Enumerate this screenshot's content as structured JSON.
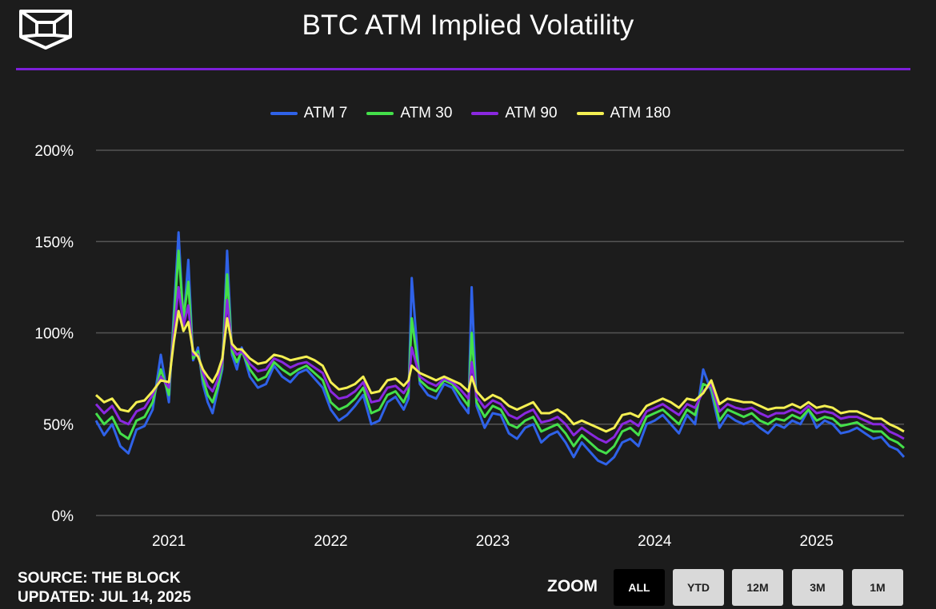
{
  "header": {
    "title": "BTC ATM Implied Volatility",
    "logo_icon": "the-block-cube-logo",
    "accent_color": "#7d1fd9"
  },
  "footer": {
    "source": "SOURCE: THE BLOCK",
    "updated": "UPDATED: JUL 14, 2025"
  },
  "zoom": {
    "label": "ZOOM",
    "buttons": [
      {
        "label": "ALL",
        "active": true
      },
      {
        "label": "YTD",
        "active": false
      },
      {
        "label": "12M",
        "active": false
      },
      {
        "label": "3M",
        "active": false
      },
      {
        "label": "1M",
        "active": false
      }
    ]
  },
  "chart_data": {
    "type": "line",
    "title": "BTC ATM Implied Volatility",
    "xlabel": "",
    "ylabel": "",
    "x_tick_labels": [
      "2021",
      "2022",
      "2023",
      "2024",
      "2025"
    ],
    "y_tick_labels": [
      "0%",
      "50%",
      "100%",
      "150%",
      "200%"
    ],
    "ylim": [
      0,
      200
    ],
    "xlim": [
      2020.55,
      2025.54
    ],
    "grid": true,
    "legend_position": "top-center",
    "x": [
      2020.55,
      2020.6,
      2020.65,
      2020.7,
      2020.75,
      2020.8,
      2020.85,
      2020.9,
      2020.95,
      2021.0,
      2021.03,
      2021.06,
      2021.09,
      2021.12,
      2021.15,
      2021.18,
      2021.21,
      2021.24,
      2021.27,
      2021.3,
      2021.33,
      2021.36,
      2021.39,
      2021.42,
      2021.45,
      2021.5,
      2021.55,
      2021.6,
      2021.65,
      2021.7,
      2021.75,
      2021.8,
      2021.85,
      2021.9,
      2021.95,
      2022.0,
      2022.05,
      2022.1,
      2022.15,
      2022.2,
      2022.25,
      2022.3,
      2022.35,
      2022.4,
      2022.45,
      2022.48,
      2022.5,
      2022.55,
      2022.6,
      2022.65,
      2022.7,
      2022.75,
      2022.8,
      2022.85,
      2022.87,
      2022.9,
      2022.95,
      2023.0,
      2023.05,
      2023.1,
      2023.15,
      2023.2,
      2023.25,
      2023.3,
      2023.35,
      2023.4,
      2023.45,
      2023.5,
      2023.55,
      2023.6,
      2023.65,
      2023.7,
      2023.75,
      2023.8,
      2023.85,
      2023.9,
      2023.95,
      2024.0,
      2024.05,
      2024.1,
      2024.15,
      2024.2,
      2024.25,
      2024.3,
      2024.35,
      2024.4,
      2024.45,
      2024.5,
      2024.55,
      2024.6,
      2024.65,
      2024.7,
      2024.75,
      2024.8,
      2024.85,
      2024.9,
      2024.95,
      2025.0,
      2025.05,
      2025.1,
      2025.15,
      2025.2,
      2025.25,
      2025.3,
      2025.35,
      2025.4,
      2025.45,
      2025.5,
      2025.54
    ],
    "series": [
      {
        "name": "ATM 7",
        "color": "#2f62e8",
        "values": [
          52,
          44,
          50,
          38,
          34,
          47,
          49,
          58,
          88,
          62,
          110,
          155,
          105,
          140,
          85,
          92,
          72,
          62,
          56,
          68,
          80,
          145,
          88,
          80,
          92,
          76,
          70,
          72,
          82,
          76,
          73,
          78,
          80,
          75,
          70,
          58,
          52,
          55,
          60,
          66,
          50,
          52,
          62,
          65,
          58,
          64,
          130,
          72,
          66,
          64,
          72,
          70,
          62,
          56,
          125,
          60,
          48,
          56,
          55,
          45,
          42,
          48,
          50,
          40,
          44,
          46,
          40,
          32,
          40,
          35,
          30,
          28,
          32,
          40,
          42,
          38,
          50,
          52,
          55,
          50,
          45,
          55,
          50,
          80,
          68,
          48,
          55,
          52,
          50,
          52,
          48,
          45,
          50,
          48,
          52,
          50,
          58,
          48,
          52,
          50,
          45,
          46,
          48,
          45,
          42,
          43,
          38,
          36,
          32
        ]
      },
      {
        "name": "ATM 30",
        "color": "#44e04a",
        "values": [
          56,
          50,
          54,
          45,
          42,
          52,
          54,
          62,
          80,
          66,
          105,
          145,
          108,
          128,
          86,
          90,
          75,
          66,
          62,
          70,
          82,
          132,
          90,
          84,
          90,
          80,
          74,
          76,
          84,
          80,
          77,
          80,
          82,
          78,
          74,
          62,
          58,
          60,
          64,
          70,
          56,
          58,
          66,
          68,
          62,
          68,
          108,
          74,
          70,
          68,
          74,
          72,
          66,
          60,
          100,
          62,
          54,
          60,
          58,
          50,
          48,
          52,
          54,
          46,
          48,
          50,
          45,
          38,
          44,
          40,
          36,
          34,
          38,
          46,
          48,
          44,
          54,
          56,
          58,
          54,
          50,
          58,
          55,
          72,
          70,
          52,
          58,
          56,
          54,
          56,
          52,
          50,
          53,
          52,
          55,
          53,
          58,
          52,
          54,
          53,
          49,
          50,
          51,
          48,
          46,
          46,
          42,
          40,
          37
        ]
      },
      {
        "name": "ATM 90",
        "color": "#8a28e0",
        "values": [
          61,
          56,
          60,
          52,
          50,
          57,
          59,
          66,
          76,
          70,
          100,
          125,
          104,
          115,
          88,
          88,
          78,
          71,
          68,
          74,
          84,
          118,
          92,
          88,
          90,
          83,
          79,
          80,
          86,
          84,
          81,
          83,
          84,
          81,
          78,
          68,
          64,
          65,
          68,
          73,
          62,
          63,
          70,
          71,
          67,
          71,
          92,
          76,
          73,
          71,
          75,
          73,
          69,
          64,
          84,
          65,
          59,
          63,
          61,
          55,
          53,
          56,
          58,
          51,
          52,
          54,
          50,
          44,
          48,
          45,
          42,
          40,
          43,
          50,
          52,
          49,
          57,
          59,
          61,
          58,
          55,
          61,
          59,
          68,
          72,
          57,
          61,
          59,
          58,
          59,
          56,
          54,
          56,
          56,
          58,
          56,
          60,
          56,
          57,
          56,
          53,
          54,
          54,
          52,
          50,
          50,
          46,
          44,
          42
        ]
      },
      {
        "name": "ATM 180",
        "color": "#f4ef52",
        "values": [
          66,
          62,
          64,
          58,
          57,
          62,
          63,
          68,
          74,
          73,
          95,
          112,
          101,
          106,
          90,
          87,
          80,
          76,
          73,
          78,
          86,
          108,
          94,
          91,
          91,
          86,
          83,
          84,
          88,
          87,
          85,
          86,
          87,
          85,
          82,
          73,
          69,
          70,
          72,
          76,
          67,
          68,
          74,
          75,
          71,
          74,
          82,
          78,
          76,
          74,
          76,
          74,
          72,
          68,
          76,
          68,
          63,
          66,
          64,
          60,
          58,
          60,
          62,
          56,
          56,
          58,
          55,
          50,
          52,
          50,
          48,
          46,
          48,
          55,
          56,
          54,
          60,
          62,
          64,
          62,
          59,
          64,
          63,
          67,
          74,
          61,
          64,
          63,
          62,
          62,
          60,
          58,
          59,
          59,
          61,
          59,
          62,
          59,
          60,
          59,
          56,
          57,
          57,
          55,
          53,
          53,
          50,
          48,
          46
        ]
      }
    ]
  }
}
